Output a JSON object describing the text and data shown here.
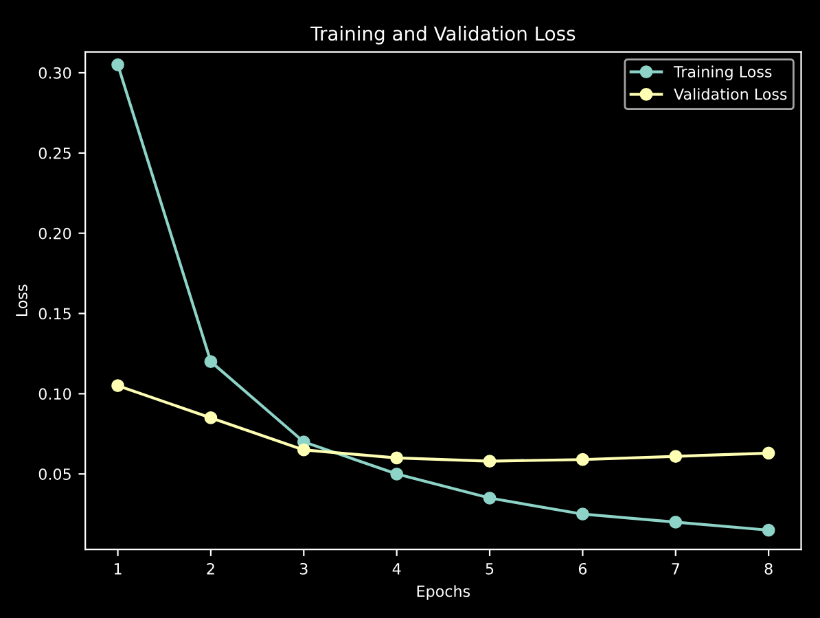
{
  "chart_data": {
    "type": "line",
    "title": "Training and Validation Loss",
    "xlabel": "Epochs",
    "ylabel": "Loss",
    "x": [
      1,
      2,
      3,
      4,
      5,
      6,
      7,
      8
    ],
    "series": [
      {
        "name": "Training Loss",
        "color": "#8dd3c7",
        "values": [
          0.305,
          0.12,
          0.07,
          0.05,
          0.035,
          0.025,
          0.02,
          0.015
        ]
      },
      {
        "name": "Validation Loss",
        "color": "#feffb3",
        "values": [
          0.105,
          0.085,
          0.065,
          0.06,
          0.058,
          0.059,
          0.061,
          0.063
        ]
      }
    ],
    "xlim": [
      0.65,
      8.35
    ],
    "xticks": [
      1,
      2,
      3,
      4,
      5,
      6,
      7,
      8
    ],
    "ylim": [
      0.003,
      0.313
    ],
    "yticks": [
      0.05,
      {
        "value": 0.1,
        "label": "0.10"
      },
      0.15,
      {
        "value": 0.2,
        "label": "0.20"
      },
      0.25,
      {
        "value": 0.3,
        "label": "0.30"
      }
    ],
    "marker": "circle",
    "line_style": "solid",
    "legend": "top right",
    "grid": false
  }
}
